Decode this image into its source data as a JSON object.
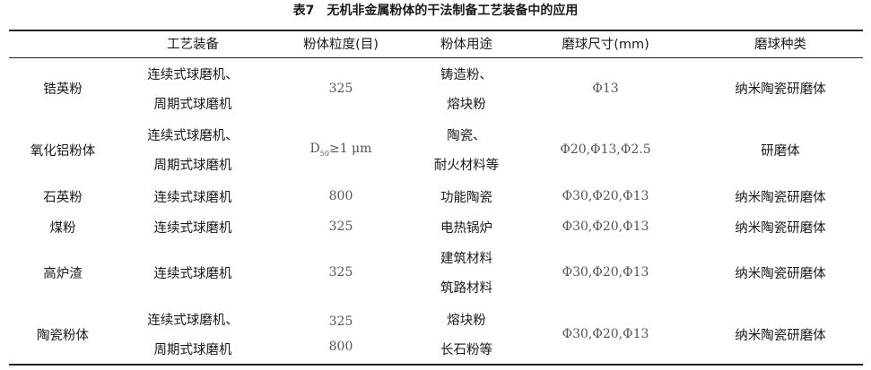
{
  "title": "表7　无机非金属粉体的干法制备工艺装备中的应用",
  "headers": [
    "",
    "工艺装备",
    "粉体粒度(目)",
    "粉体用途",
    "磨球尺寸(mm)",
    "磨球种类"
  ],
  "rows": [
    {
      "material": "锆英粉",
      "equipment": [
        "连续式球磨机、",
        "周期式球磨机"
      ],
      "size": [
        "325"
      ],
      "use": [
        "铸造粉、",
        "熔块粉"
      ],
      "ball_size": "Φ13",
      "ball_type": "纳米陶瓷研磨体"
    },
    {
      "material": "氧化铝粉体",
      "equipment": [
        "连续式球磨机、",
        "周期式球磨机"
      ],
      "size_prefix": "D",
      "size_sub": "50",
      "size_rest": "≥1 μm",
      "use": [
        "陶瓷、",
        "耐火材料等"
      ],
      "ball_size": "Φ20,Φ13,Φ2.5",
      "ball_type": "研磨体"
    },
    {
      "material": "石英粉",
      "equipment": [
        "连续式球磨机"
      ],
      "size": [
        "800"
      ],
      "use": [
        "功能陶瓷"
      ],
      "ball_size": "Φ30,Φ20,Φ13",
      "ball_type": "纳米陶瓷研磨体"
    },
    {
      "material": "煤粉",
      "equipment": [
        "连续式球磨机"
      ],
      "size": [
        "325"
      ],
      "use": [
        "电热锅炉"
      ],
      "ball_size": "Φ30,Φ20,Φ13",
      "ball_type": "纳米陶瓷研磨体"
    },
    {
      "material": "高炉渣",
      "equipment": [
        "连续式球磨机"
      ],
      "size": [
        "325"
      ],
      "use": [
        "建筑材料",
        "筑路材料"
      ],
      "ball_size": "Φ30,Φ20,Φ13",
      "ball_type": "纳米陶瓷研磨体"
    },
    {
      "material": "陶瓷粉体",
      "equipment": [
        "连续式球磨机、",
        "周期式球磨机"
      ],
      "size": [
        "325",
        "800"
      ],
      "use": [
        "熔块粉",
        "长石粉等"
      ],
      "ball_size": "Φ30,Φ20,Φ13",
      "ball_type": "纳米陶瓷研磨体"
    }
  ]
}
